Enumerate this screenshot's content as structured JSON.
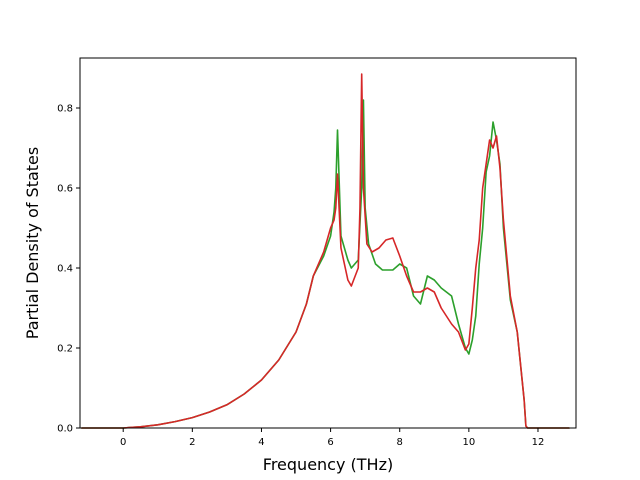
{
  "chart_data": {
    "type": "line",
    "title": "",
    "xlabel": "Frequency (THz)",
    "ylabel": "Partial Density of States",
    "xlim": [
      -1.25,
      13.1
    ],
    "ylim": [
      0,
      0.925
    ],
    "xticks": [
      0,
      2,
      4,
      6,
      8,
      10,
      12
    ],
    "yticks": [
      0.0,
      0.2,
      0.4,
      0.6,
      0.8
    ],
    "grid": false,
    "legend": "none",
    "series": [
      {
        "color": "#2ca02c",
        "x": [
          -1.2,
          -0.5,
          0,
          0.5,
          1,
          1.5,
          2,
          2.5,
          3,
          3.5,
          4,
          4.5,
          5,
          5.3,
          5.5,
          5.8,
          6.0,
          6.1,
          6.15,
          6.2,
          6.3,
          6.5,
          6.6,
          6.8,
          6.9,
          6.95,
          7.0,
          7.1,
          7.3,
          7.5,
          7.8,
          8.0,
          8.2,
          8.4,
          8.6,
          8.8,
          9.0,
          9.2,
          9.5,
          9.7,
          9.9,
          10.0,
          10.1,
          10.2,
          10.3,
          10.4,
          10.5,
          10.6,
          10.7,
          10.8,
          10.9,
          11.0,
          11.2,
          11.4,
          11.6,
          11.65,
          11.7,
          12.0,
          12.9
        ],
        "y": [
          0,
          0,
          0,
          0.003,
          0.008,
          0.016,
          0.026,
          0.04,
          0.058,
          0.085,
          0.12,
          0.17,
          0.24,
          0.31,
          0.38,
          0.43,
          0.48,
          0.54,
          0.6,
          0.745,
          0.48,
          0.42,
          0.4,
          0.42,
          0.6,
          0.82,
          0.55,
          0.46,
          0.41,
          0.395,
          0.395,
          0.41,
          0.4,
          0.33,
          0.31,
          0.38,
          0.37,
          0.35,
          0.33,
          0.26,
          0.2,
          0.185,
          0.22,
          0.28,
          0.41,
          0.5,
          0.64,
          0.68,
          0.765,
          0.72,
          0.66,
          0.5,
          0.32,
          0.24,
          0.07,
          0.005,
          0,
          0,
          0
        ]
      },
      {
        "color": "#d62728",
        "x": [
          -1.2,
          -0.5,
          0,
          0.5,
          1,
          1.5,
          2,
          2.5,
          3,
          3.5,
          4,
          4.5,
          5,
          5.3,
          5.5,
          5.8,
          6.0,
          6.1,
          6.15,
          6.2,
          6.3,
          6.5,
          6.6,
          6.8,
          6.85,
          6.9,
          6.95,
          7.05,
          7.2,
          7.4,
          7.6,
          7.8,
          8.0,
          8.2,
          8.4,
          8.6,
          8.8,
          9.0,
          9.2,
          9.5,
          9.7,
          9.9,
          10.0,
          10.1,
          10.2,
          10.3,
          10.4,
          10.5,
          10.6,
          10.7,
          10.8,
          10.9,
          11.0,
          11.2,
          11.4,
          11.6,
          11.65,
          11.7,
          12.0,
          12.9
        ],
        "y": [
          0,
          0,
          0,
          0.003,
          0.008,
          0.016,
          0.026,
          0.04,
          0.058,
          0.085,
          0.12,
          0.17,
          0.24,
          0.31,
          0.38,
          0.44,
          0.5,
          0.52,
          0.55,
          0.635,
          0.45,
          0.37,
          0.355,
          0.4,
          0.55,
          0.885,
          0.6,
          0.46,
          0.44,
          0.45,
          0.47,
          0.475,
          0.43,
          0.38,
          0.34,
          0.34,
          0.35,
          0.34,
          0.3,
          0.26,
          0.24,
          0.195,
          0.21,
          0.3,
          0.4,
          0.47,
          0.6,
          0.66,
          0.72,
          0.7,
          0.73,
          0.65,
          0.52,
          0.33,
          0.24,
          0.07,
          0.005,
          0,
          0,
          0
        ]
      }
    ]
  }
}
